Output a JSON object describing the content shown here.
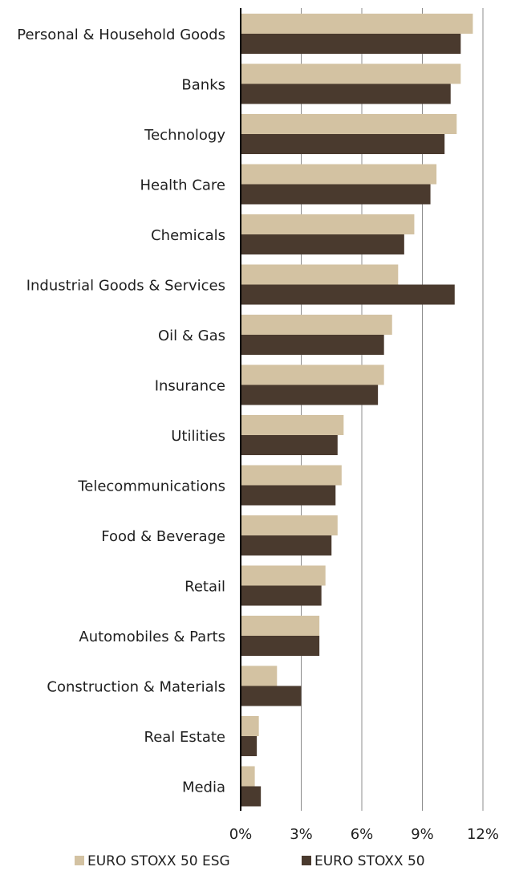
{
  "chart_data": {
    "type": "bar",
    "orientation": "horizontal",
    "title": "",
    "xlabel": "",
    "ylabel": "",
    "xlim": [
      0,
      12
    ],
    "x_ticks": [
      "0%",
      "3%",
      "6%",
      "9%",
      "12%"
    ],
    "x_tick_values": [
      0,
      3,
      6,
      9,
      12
    ],
    "grid": "vertical",
    "legend_position": "bottom",
    "categories": [
      "Personal & Household Goods",
      "Banks",
      "Technology",
      "Health Care",
      "Chemicals",
      "Industrial Goods & Services",
      "Oil & Gas",
      "Insurance",
      "Utilities",
      "Telecommunications",
      "Food & Beverage",
      "Retail",
      "Automobiles & Parts",
      "Construction & Materials",
      "Real Estate",
      "Media"
    ],
    "series": [
      {
        "name": "EURO STOXX 50 ESG",
        "color": "#d3c2a2",
        "values": [
          11.5,
          10.9,
          10.7,
          9.7,
          8.6,
          7.8,
          7.5,
          7.1,
          5.1,
          5.0,
          4.8,
          4.2,
          3.9,
          1.8,
          0.9,
          0.7
        ]
      },
      {
        "name": "EURO STOXX 50",
        "color": "#4a3a2e",
        "values": [
          10.9,
          10.4,
          10.1,
          9.4,
          8.1,
          10.6,
          7.1,
          6.8,
          4.8,
          4.7,
          4.5,
          4.0,
          3.9,
          3.0,
          0.8,
          1.0
        ]
      }
    ]
  }
}
